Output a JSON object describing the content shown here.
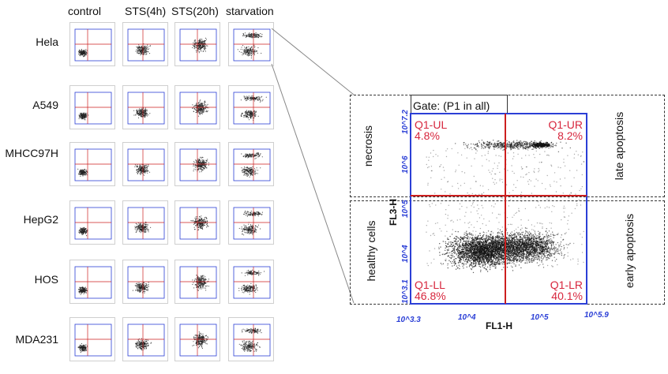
{
  "columns": [
    "control",
    "STS(4h)",
    "STS(20h)",
    "starvation"
  ],
  "rows": [
    "Hela",
    "A549",
    "MHCC97H",
    "HepG2",
    "HOS",
    "MDA231"
  ],
  "enlarged": {
    "gate_label": "Gate: (P1 in all)",
    "quadrants": {
      "ul": {
        "name": "Q1-UL",
        "pct": "4.8%"
      },
      "ur": {
        "name": "Q1-UR",
        "pct": "8.2%"
      },
      "ll": {
        "name": "Q1-LL",
        "pct": "46.8%"
      },
      "lr": {
        "name": "Q1-LR",
        "pct": "40.1%"
      }
    },
    "x_axis": {
      "label": "FL1-H",
      "ticks": [
        "10^3.3",
        "10^4",
        "10^5",
        "10^5.9"
      ]
    },
    "y_axis": {
      "label": "FL3-H",
      "ticks": [
        "10^3.1",
        "10^4",
        "10^5",
        "10^6",
        "10^7.2"
      ]
    },
    "regions": {
      "necrosis": "necrosis",
      "late_apoptosis": "late apoptosis",
      "healthy": "healthy cells",
      "early_apoptosis": "early apoptosis"
    }
  },
  "colors": {
    "axis": "#2b3fd6",
    "gate": "#cc1f1f",
    "quad_text": "#d7263d"
  }
}
